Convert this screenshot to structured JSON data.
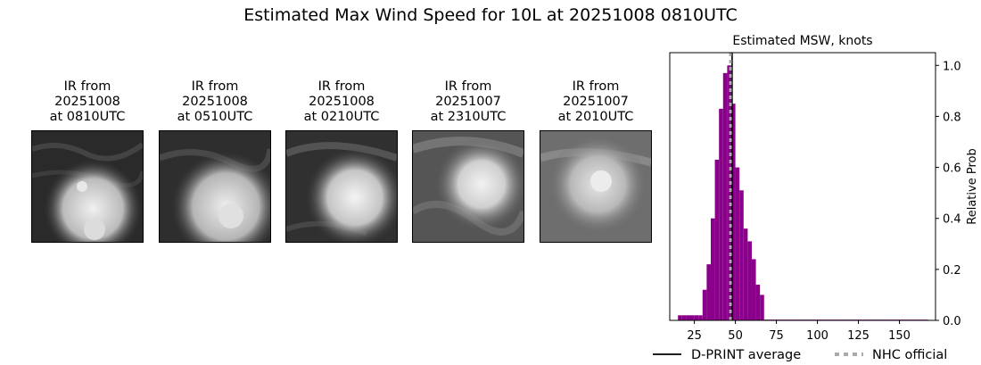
{
  "figure": {
    "title": "Estimated Max Wind Speed for 10L at 20251008 0810UTC"
  },
  "panels": [
    {
      "line1": "IR from",
      "line2": "20251008",
      "line3": "at 0810UTC"
    },
    {
      "line1": "IR from",
      "line2": "20251008",
      "line3": "at 0510UTC"
    },
    {
      "line1": "IR from",
      "line2": "20251008",
      "line3": "at 0210UTC"
    },
    {
      "line1": "IR from",
      "line2": "20251007",
      "line3": "at 2310UTC"
    },
    {
      "line1": "IR from",
      "line2": "20251007",
      "line3": "at 2010UTC"
    }
  ],
  "chart_data": {
    "type": "bar",
    "title": "Estimated MSW, knots",
    "xlabel": "",
    "ylabel": "Relative Prob",
    "xlim": [
      10,
      172
    ],
    "ylim": [
      0,
      1.05
    ],
    "xticks": [
      25,
      50,
      75,
      100,
      125,
      150
    ],
    "yticks": [
      0.0,
      0.2,
      0.4,
      0.6,
      0.8,
      1.0
    ],
    "bin_width": 2.5,
    "bins": [
      {
        "x0": 15,
        "value": 0.02
      },
      {
        "x0": 17.5,
        "value": 0.02
      },
      {
        "x0": 20,
        "value": 0.02
      },
      {
        "x0": 22.5,
        "value": 0.02
      },
      {
        "x0": 25,
        "value": 0.02
      },
      {
        "x0": 27.5,
        "value": 0.02
      },
      {
        "x0": 30,
        "value": 0.12
      },
      {
        "x0": 32.5,
        "value": 0.22
      },
      {
        "x0": 35,
        "value": 0.4
      },
      {
        "x0": 37.5,
        "value": 0.63
      },
      {
        "x0": 40,
        "value": 0.83
      },
      {
        "x0": 42.5,
        "value": 0.97
      },
      {
        "x0": 45,
        "value": 1.0
      },
      {
        "x0": 47.5,
        "value": 0.85
      },
      {
        "x0": 50,
        "value": 0.6
      },
      {
        "x0": 52.5,
        "value": 0.51
      },
      {
        "x0": 55,
        "value": 0.36
      },
      {
        "x0": 57.5,
        "value": 0.31
      },
      {
        "x0": 60,
        "value": 0.24
      },
      {
        "x0": 62.5,
        "value": 0.14
      },
      {
        "x0": 65,
        "value": 0.1
      },
      {
        "x0": 67.5,
        "value": 0.003
      },
      {
        "x0": 70,
        "value": 0.003
      },
      {
        "x0": 72.5,
        "value": 0.003
      },
      {
        "x0": 75,
        "value": 0.003
      },
      {
        "x0": 77.5,
        "value": 0.003
      },
      {
        "x0": 80,
        "value": 0.003
      },
      {
        "x0": 82.5,
        "value": 0.003
      },
      {
        "x0": 85,
        "value": 0.003
      },
      {
        "x0": 87.5,
        "value": 0.003
      },
      {
        "x0": 90,
        "value": 0.003
      },
      {
        "x0": 92.5,
        "value": 0.003
      },
      {
        "x0": 95,
        "value": 0.003
      },
      {
        "x0": 97.5,
        "value": 0.003
      },
      {
        "x0": 100,
        "value": 0.003
      },
      {
        "x0": 102.5,
        "value": 0.003
      },
      {
        "x0": 105,
        "value": 0.003
      },
      {
        "x0": 107.5,
        "value": 0.003
      },
      {
        "x0": 110,
        "value": 0.003
      },
      {
        "x0": 112.5,
        "value": 0.003
      },
      {
        "x0": 115,
        "value": 0.003
      },
      {
        "x0": 117.5,
        "value": 0.003
      },
      {
        "x0": 120,
        "value": 0.003
      },
      {
        "x0": 122.5,
        "value": 0.003
      },
      {
        "x0": 125,
        "value": 0.003
      },
      {
        "x0": 127.5,
        "value": 0.003
      },
      {
        "x0": 130,
        "value": 0.003
      },
      {
        "x0": 132.5,
        "value": 0.003
      },
      {
        "x0": 135,
        "value": 0.003
      },
      {
        "x0": 137.5,
        "value": 0.003
      },
      {
        "x0": 140,
        "value": 0.003
      },
      {
        "x0": 142.5,
        "value": 0.003
      },
      {
        "x0": 145,
        "value": 0.003
      },
      {
        "x0": 147.5,
        "value": 0.003
      },
      {
        "x0": 150,
        "value": 0.003
      },
      {
        "x0": 152.5,
        "value": 0.003
      },
      {
        "x0": 155,
        "value": 0.003
      },
      {
        "x0": 157.5,
        "value": 0.003
      },
      {
        "x0": 160,
        "value": 0.003
      },
      {
        "x0": 162.5,
        "value": 0.003
      },
      {
        "x0": 165,
        "value": 0.003
      }
    ],
    "bar_color": "#8b008b",
    "lines": [
      {
        "name": "D-PRINT average",
        "x": 48,
        "color": "#000000",
        "style": "solid"
      },
      {
        "name": "NHC official",
        "x": 47,
        "color": "#aaaaaa",
        "style": "dotted"
      }
    ],
    "legend": "bottom"
  }
}
